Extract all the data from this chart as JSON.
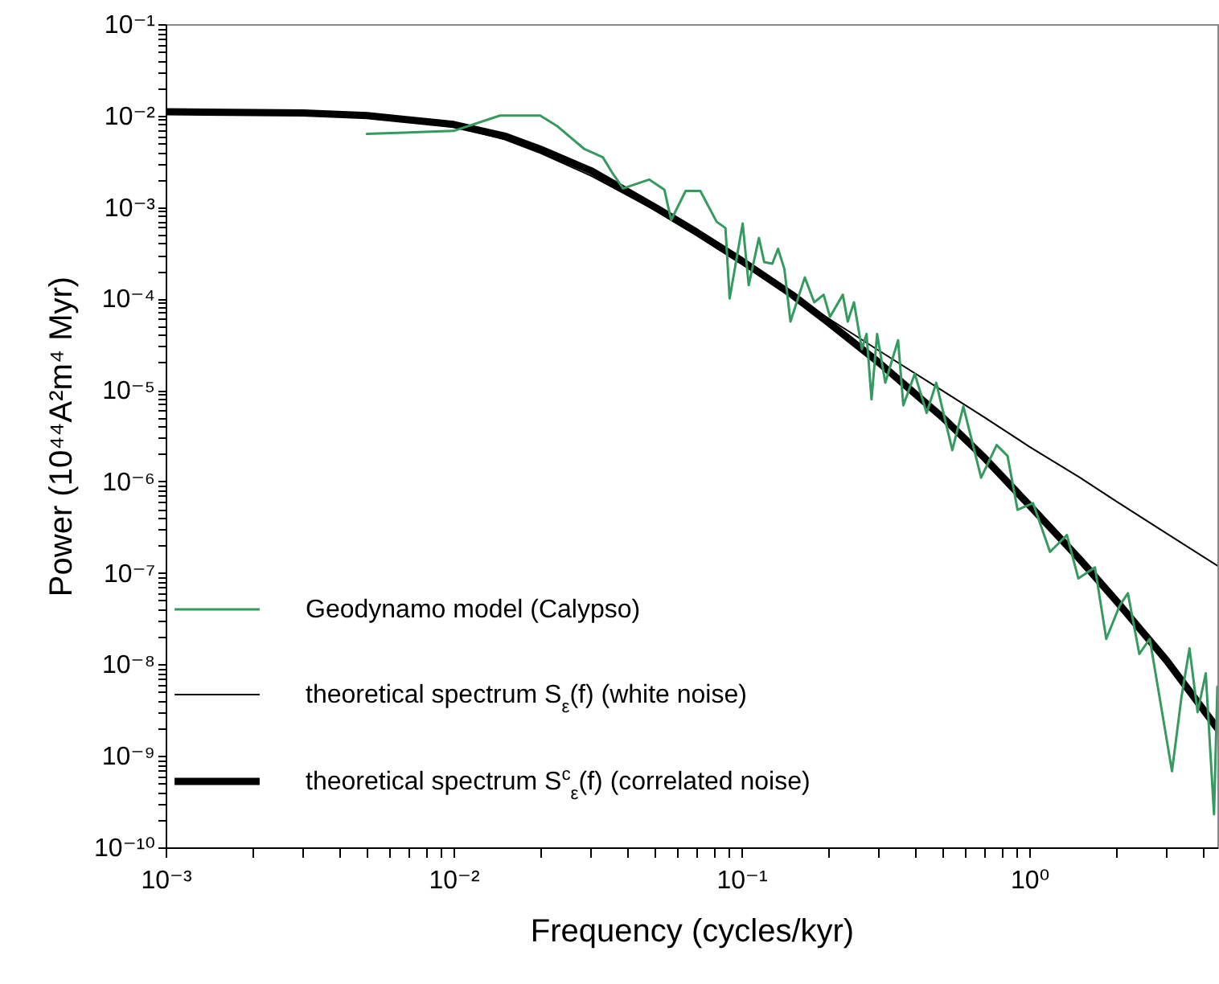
{
  "chart_data": {
    "type": "line",
    "xlabel": "Frequency  (cycles/kyr)",
    "ylabel": "Power  (10⁴⁴A²m⁴ Myr)",
    "log": "xy",
    "grid": false,
    "legend": "bottom left",
    "marker": "none",
    "line_style": "solid",
    "xlim": [
      0.001,
      4.5
    ],
    "ylim": [
      1e-10,
      0.1
    ],
    "xticks": [
      {
        "value": 0.001,
        "label": "10⁻³"
      },
      {
        "value": 0.002,
        "label": null
      },
      {
        "value": 0.003,
        "label": null
      },
      {
        "value": 0.004,
        "label": null
      },
      {
        "value": 0.005,
        "label": null
      },
      {
        "value": 0.006,
        "label": null
      },
      {
        "value": 0.007,
        "label": null
      },
      {
        "value": 0.008,
        "label": null
      },
      {
        "value": 0.009,
        "label": null
      },
      {
        "value": 0.01,
        "label": "10⁻²"
      },
      {
        "value": 0.02,
        "label": null
      },
      {
        "value": 0.03,
        "label": null
      },
      {
        "value": 0.04,
        "label": null
      },
      {
        "value": 0.05,
        "label": null
      },
      {
        "value": 0.06,
        "label": null
      },
      {
        "value": 0.07,
        "label": null
      },
      {
        "value": 0.08,
        "label": null
      },
      {
        "value": 0.09,
        "label": null
      },
      {
        "value": 0.1,
        "label": "10⁻¹"
      },
      {
        "value": 0.2,
        "label": null
      },
      {
        "value": 0.3,
        "label": null
      },
      {
        "value": 0.4,
        "label": null
      },
      {
        "value": 0.5,
        "label": null
      },
      {
        "value": 0.6,
        "label": null
      },
      {
        "value": 0.7,
        "label": null
      },
      {
        "value": 0.8,
        "label": null
      },
      {
        "value": 0.9,
        "label": null
      },
      {
        "value": 1,
        "label": "10⁰"
      },
      {
        "value": 2,
        "label": null
      },
      {
        "value": 3,
        "label": null
      },
      {
        "value": 4,
        "label": null
      }
    ],
    "yticks": [
      {
        "value": 1e-10,
        "label": "10⁻¹⁰"
      },
      {
        "value": 2e-10,
        "label": null
      },
      {
        "value": 3e-10,
        "label": null
      },
      {
        "value": 4e-10,
        "label": null
      },
      {
        "value": 5e-10,
        "label": null
      },
      {
        "value": 6e-10,
        "label": null
      },
      {
        "value": 7e-10,
        "label": null
      },
      {
        "value": 8e-10,
        "label": null
      },
      {
        "value": 9e-10,
        "label": null
      },
      {
        "value": 1e-09,
        "label": "10⁻⁹"
      },
      {
        "value": 2e-09,
        "label": null
      },
      {
        "value": 3e-09,
        "label": null
      },
      {
        "value": 4e-09,
        "label": null
      },
      {
        "value": 5e-09,
        "label": null
      },
      {
        "value": 6e-09,
        "label": null
      },
      {
        "value": 7e-09,
        "label": null
      },
      {
        "value": 8e-09,
        "label": null
      },
      {
        "value": 9e-09,
        "label": null
      },
      {
        "value": 1e-08,
        "label": "10⁻⁸"
      },
      {
        "value": 2e-08,
        "label": null
      },
      {
        "value": 3e-08,
        "label": null
      },
      {
        "value": 4e-08,
        "label": null
      },
      {
        "value": 5e-08,
        "label": null
      },
      {
        "value": 6e-08,
        "label": null
      },
      {
        "value": 7e-08,
        "label": null
      },
      {
        "value": 8e-08,
        "label": null
      },
      {
        "value": 9e-08,
        "label": null
      },
      {
        "value": 1e-07,
        "label": "10⁻⁷"
      },
      {
        "value": 2e-07,
        "label": null
      },
      {
        "value": 3e-07,
        "label": null
      },
      {
        "value": 4e-07,
        "label": null
      },
      {
        "value": 5e-07,
        "label": null
      },
      {
        "value": 6e-07,
        "label": null
      },
      {
        "value": 7e-07,
        "label": null
      },
      {
        "value": 8e-07,
        "label": null
      },
      {
        "value": 9e-07,
        "label": null
      },
      {
        "value": 1e-06,
        "label": "10⁻⁶"
      },
      {
        "value": 2e-06,
        "label": null
      },
      {
        "value": 3e-06,
        "label": null
      },
      {
        "value": 4e-06,
        "label": null
      },
      {
        "value": 5e-06,
        "label": null
      },
      {
        "value": 6e-06,
        "label": null
      },
      {
        "value": 7e-06,
        "label": null
      },
      {
        "value": 8e-06,
        "label": null
      },
      {
        "value": 9e-06,
        "label": null
      },
      {
        "value": 1e-05,
        "label": "10⁻⁵"
      },
      {
        "value": 2e-05,
        "label": null
      },
      {
        "value": 3e-05,
        "label": null
      },
      {
        "value": 4e-05,
        "label": null
      },
      {
        "value": 5e-05,
        "label": null
      },
      {
        "value": 6e-05,
        "label": null
      },
      {
        "value": 7e-05,
        "label": null
      },
      {
        "value": 8e-05,
        "label": null
      },
      {
        "value": 9e-05,
        "label": null
      },
      {
        "value": 0.0001,
        "label": "10⁻⁴"
      },
      {
        "value": 0.0002,
        "label": null
      },
      {
        "value": 0.0003,
        "label": null
      },
      {
        "value": 0.0004,
        "label": null
      },
      {
        "value": 0.0005,
        "label": null
      },
      {
        "value": 0.0006,
        "label": null
      },
      {
        "value": 0.0007,
        "label": null
      },
      {
        "value": 0.0008,
        "label": null
      },
      {
        "value": 0.0009,
        "label": null
      },
      {
        "value": 0.001,
        "label": "10⁻³"
      },
      {
        "value": 0.002,
        "label": null
      },
      {
        "value": 0.003,
        "label": null
      },
      {
        "value": 0.004,
        "label": null
      },
      {
        "value": 0.005,
        "label": null
      },
      {
        "value": 0.006,
        "label": null
      },
      {
        "value": 0.007,
        "label": null
      },
      {
        "value": 0.008,
        "label": null
      },
      {
        "value": 0.009,
        "label": null
      },
      {
        "value": 0.01,
        "label": "10⁻²"
      },
      {
        "value": 0.02,
        "label": null
      },
      {
        "value": 0.03,
        "label": null
      },
      {
        "value": 0.04,
        "label": null
      },
      {
        "value": 0.05,
        "label": null
      },
      {
        "value": 0.06,
        "label": null
      },
      {
        "value": 0.07,
        "label": null
      },
      {
        "value": 0.08,
        "label": null
      },
      {
        "value": 0.09,
        "label": null
      },
      {
        "value": 0.1,
        "label": "10⁻¹"
      }
    ],
    "series": [
      {
        "name": "Geodynamo model (Calypso)",
        "color": "#359a5f",
        "x": [
          0.005,
          0.01,
          0.0145,
          0.02,
          0.023,
          0.0285,
          0.033,
          0.0355,
          0.0388,
          0.0478,
          0.054,
          0.057,
          0.064,
          0.072,
          0.082,
          0.088,
          0.091,
          0.101,
          0.106,
          0.115,
          0.12,
          0.128,
          0.134,
          0.141,
          0.148,
          0.166,
          0.179,
          0.193,
          0.203,
          0.225,
          0.234,
          0.246,
          0.262,
          0.272,
          0.283,
          0.296,
          0.316,
          0.35,
          0.365,
          0.4,
          0.44,
          0.475,
          0.54,
          0.59,
          0.68,
          0.77,
          0.84,
          0.91,
          1.03,
          1.18,
          1.35,
          1.48,
          1.69,
          1.85,
          2.06,
          2.2,
          2.41,
          2.62,
          3.13,
          3.38,
          3.6,
          3.84,
          4.1,
          4.38,
          4.5
        ],
        "values": [
          0.0063,
          0.0068,
          0.01,
          0.01,
          0.0076,
          0.0043,
          0.0035,
          0.0024,
          0.0016,
          0.002,
          0.00155,
          0.00072,
          0.0015,
          0.0015,
          0.00069,
          0.00059,
          0.0001,
          0.00066,
          0.00014,
          0.00046,
          0.00025,
          0.00024,
          0.00035,
          0.00021,
          5.6e-05,
          0.00017,
          9.1e-05,
          0.00011,
          6.3e-05,
          0.00011,
          5.6e-05,
          9.1e-05,
          2.8e-05,
          4.1e-05,
          7.9e-06,
          4.1e-05,
          1.2e-05,
          3.5e-05,
          6.8e-06,
          1.5e-05,
          5.6e-06,
          1.2e-05,
          2.2e-06,
          6.6e-06,
          1.1e-06,
          2.5e-06,
          1.9e-06,
          4.9e-07,
          5.8e-07,
          1.7e-07,
          2.6e-07,
          8.7e-08,
          1.15e-07,
          1.9e-08,
          4.4e-08,
          6e-08,
          1.3e-08,
          1.9e-08,
          6.8e-10,
          4.5e-09,
          1.5e-08,
          3e-09,
          8e-09,
          2.3e-10,
          5.7e-09
        ]
      },
      {
        "name": "theoretical spectrum  S$_{ε}$(f)  (white noise)",
        "color": "#000000",
        "x": [
          0.001,
          0.003,
          0.005,
          0.01,
          0.015,
          0.02,
          0.03,
          0.05,
          0.07,
          0.1,
          0.15,
          0.2,
          0.3,
          0.5,
          0.7,
          1,
          1.5,
          2,
          3,
          4.5
        ],
        "values": [
          0.011,
          0.0106,
          0.0099,
          0.0076,
          0.0055,
          0.0039,
          0.0022,
          0.00093,
          0.00049,
          0.00024,
          0.00011,
          6.1e-05,
          2.7e-05,
          9.8e-06,
          5e-06,
          2.4e-06,
          1.1e-06,
          6.1e-07,
          2.7e-07,
          1.2e-07
        ]
      },
      {
        "name": "theoretical spectrum  S$^{c}$$_{ε}$(f)  (correlated noise)",
        "color": "#000000",
        "x": [
          0.001,
          0.003,
          0.005,
          0.01,
          0.015,
          0.02,
          0.03,
          0.05,
          0.07,
          0.1,
          0.15,
          0.2,
          0.3,
          0.5,
          0.7,
          1,
          1.5,
          2,
          3,
          4.5
        ],
        "values": [
          0.011,
          0.0107,
          0.01,
          0.008,
          0.006,
          0.0043,
          0.0025,
          0.001,
          0.00053,
          0.00026,
          0.00011,
          5.5e-05,
          2e-05,
          5e-06,
          1.8e-06,
          5.5e-07,
          1.4e-07,
          5e-08,
          1.1e-08,
          2e-09
        ]
      }
    ]
  }
}
